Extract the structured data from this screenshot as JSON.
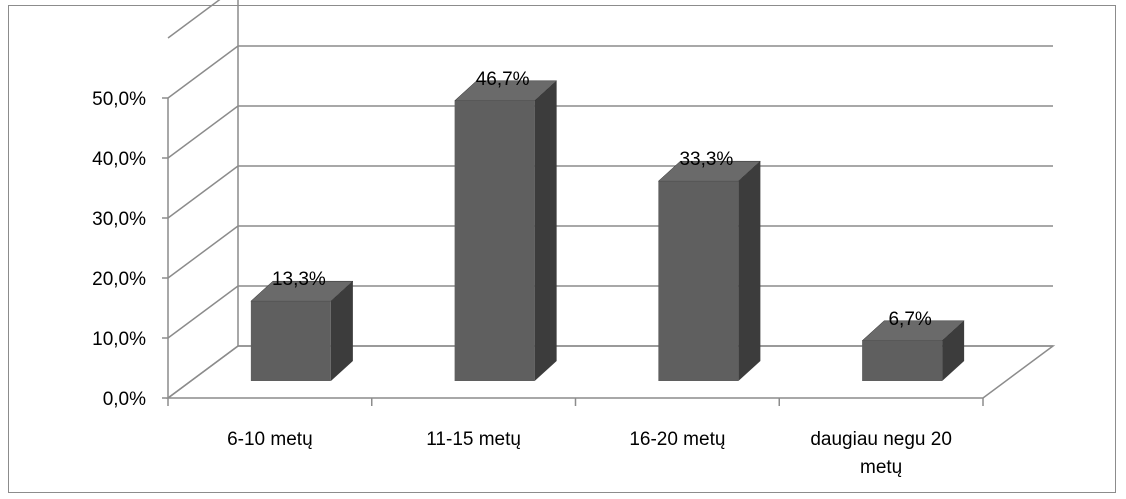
{
  "chart_data": {
    "type": "bar",
    "categories": [
      "6-10 metų",
      "11-15 metų",
      "16-20 metų",
      "daugiau negu 20 metų"
    ],
    "category_labels": [
      [
        "6-10 metų"
      ],
      [
        "11-15 metų"
      ],
      [
        "16-20 metų"
      ],
      [
        "daugiau negu 20",
        "metų"
      ]
    ],
    "values": [
      13.3,
      46.7,
      33.3,
      6.7
    ],
    "value_labels": [
      "13,3%",
      "46,7%",
      "33,3%",
      "6,7%"
    ],
    "yticks": [
      "0,0%",
      "10,0%",
      "20,0%",
      "30,0%",
      "40,0%",
      "50,0%"
    ],
    "ylim": [
      0,
      60
    ],
    "grid": true,
    "three_d": true,
    "legend": "none",
    "colors": {
      "bar_front": "#5f5f5f",
      "bar_top": "#6a6a6a",
      "bar_side": "#3c3c3c",
      "grid": "#8c8c8c",
      "frame": "#8c8c8c"
    }
  }
}
